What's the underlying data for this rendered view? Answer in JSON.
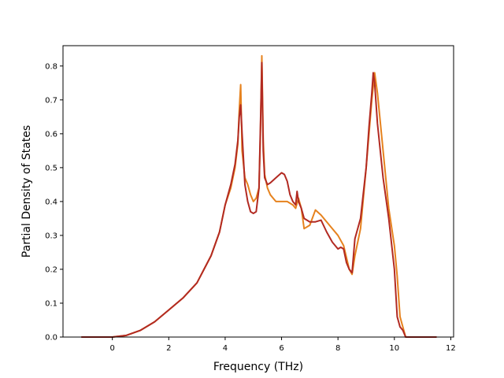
{
  "chart_data": {
    "type": "line",
    "title": "",
    "xlabel": "Frequency (THz)",
    "ylabel": "Partial Density of States",
    "xlim": [
      -1.75,
      12.1
    ],
    "ylim": [
      0.0,
      0.86
    ],
    "xticks": [
      0,
      2,
      4,
      6,
      8,
      10,
      12
    ],
    "yticks": [
      0.0,
      0.1,
      0.2,
      0.3,
      0.4,
      0.5,
      0.6,
      0.7,
      0.8
    ],
    "xtick_labels": [
      "0",
      "2",
      "4",
      "6",
      "8",
      "10",
      "12"
    ],
    "ytick_labels": [
      "0.0",
      "0.1",
      "0.2",
      "0.3",
      "0.4",
      "0.5",
      "0.6",
      "0.7",
      "0.8"
    ],
    "grid": false,
    "legend": "none",
    "series": [
      {
        "color": "#e6821e",
        "x": [
          -1.1,
          0.0,
          0.5,
          1.0,
          1.5,
          2.0,
          2.5,
          3.0,
          3.5,
          3.8,
          4.0,
          4.2,
          4.35,
          4.45,
          4.5,
          4.55,
          4.6,
          4.7,
          4.8,
          4.9,
          5.0,
          5.1,
          5.2,
          5.25,
          5.3,
          5.35,
          5.4,
          5.5,
          5.6,
          5.8,
          6.0,
          6.2,
          6.4,
          6.5,
          6.6,
          6.7,
          6.8,
          7.0,
          7.2,
          7.4,
          7.6,
          7.8,
          8.0,
          8.2,
          8.4,
          8.5,
          8.6,
          8.8,
          9.0,
          9.1,
          9.2,
          9.3,
          9.4,
          9.6,
          9.8,
          10.0,
          10.1,
          10.2,
          10.3,
          10.4,
          11.5
        ],
        "y": [
          0.0,
          0.0,
          0.005,
          0.02,
          0.045,
          0.08,
          0.115,
          0.16,
          0.24,
          0.31,
          0.39,
          0.44,
          0.5,
          0.57,
          0.67,
          0.745,
          0.55,
          0.47,
          0.45,
          0.42,
          0.4,
          0.41,
          0.44,
          0.6,
          0.83,
          0.58,
          0.48,
          0.44,
          0.42,
          0.4,
          0.4,
          0.4,
          0.39,
          0.38,
          0.41,
          0.38,
          0.32,
          0.33,
          0.375,
          0.36,
          0.34,
          0.32,
          0.3,
          0.27,
          0.2,
          0.185,
          0.24,
          0.32,
          0.5,
          0.6,
          0.7,
          0.78,
          0.72,
          0.55,
          0.38,
          0.27,
          0.18,
          0.06,
          0.03,
          0.0,
          0.0
        ]
      },
      {
        "color": "#b22a22",
        "x": [
          -1.1,
          0.0,
          0.5,
          1.0,
          1.5,
          2.0,
          2.5,
          3.0,
          3.5,
          3.8,
          4.0,
          4.2,
          4.35,
          4.45,
          4.5,
          4.55,
          4.6,
          4.7,
          4.8,
          4.9,
          5.0,
          5.1,
          5.2,
          5.25,
          5.3,
          5.35,
          5.4,
          5.5,
          5.6,
          5.8,
          6.0,
          6.1,
          6.2,
          6.3,
          6.4,
          6.5,
          6.55,
          6.6,
          6.7,
          6.8,
          7.0,
          7.2,
          7.4,
          7.6,
          7.8,
          8.0,
          8.1,
          8.2,
          8.3,
          8.4,
          8.5,
          8.6,
          8.8,
          9.0,
          9.1,
          9.2,
          9.25,
          9.3,
          9.4,
          9.6,
          9.8,
          10.0,
          10.1,
          10.2,
          10.3,
          10.4,
          11.5
        ],
        "y": [
          0.0,
          0.0,
          0.005,
          0.02,
          0.045,
          0.08,
          0.115,
          0.16,
          0.24,
          0.31,
          0.39,
          0.45,
          0.51,
          0.58,
          0.65,
          0.685,
          0.6,
          0.45,
          0.4,
          0.37,
          0.365,
          0.37,
          0.44,
          0.62,
          0.81,
          0.55,
          0.47,
          0.45,
          0.455,
          0.47,
          0.485,
          0.48,
          0.46,
          0.42,
          0.4,
          0.39,
          0.43,
          0.4,
          0.38,
          0.35,
          0.34,
          0.34,
          0.345,
          0.31,
          0.28,
          0.26,
          0.265,
          0.26,
          0.22,
          0.2,
          0.19,
          0.29,
          0.35,
          0.5,
          0.62,
          0.72,
          0.78,
          0.75,
          0.63,
          0.47,
          0.35,
          0.2,
          0.06,
          0.03,
          0.02,
          0.0,
          0.0
        ]
      }
    ]
  }
}
